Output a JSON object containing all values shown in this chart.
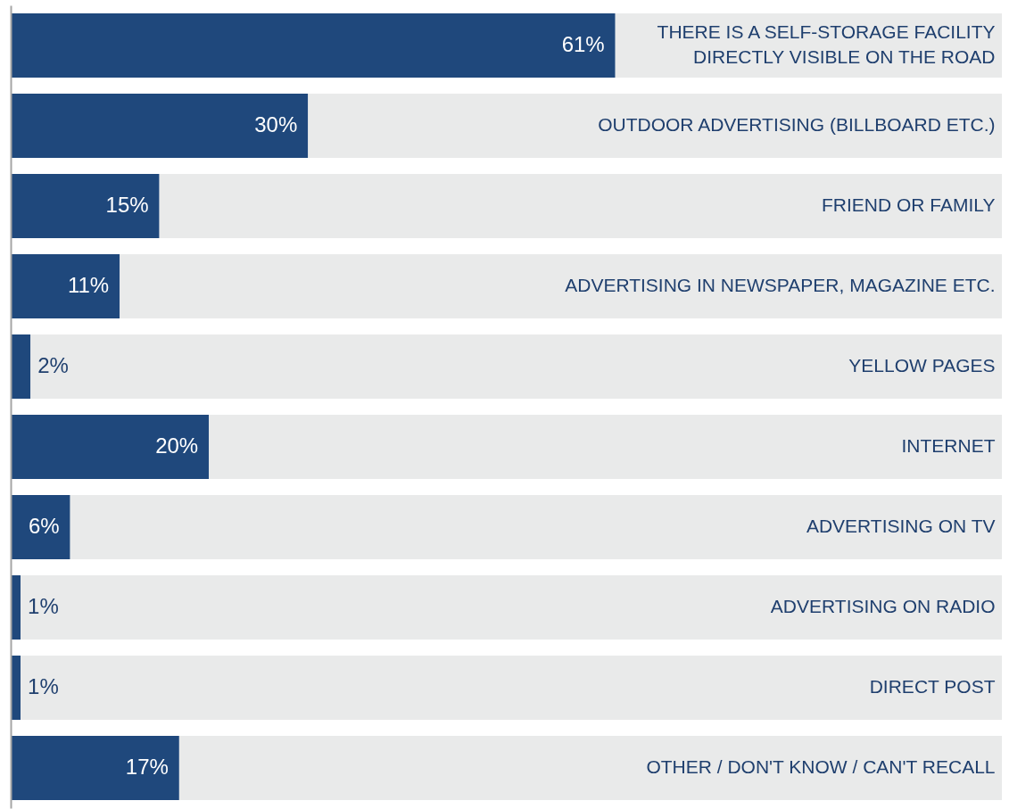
{
  "chart_data": {
    "type": "bar",
    "orientation": "horizontal",
    "stacked": true,
    "categories": [
      "THERE IS A SELF-STORAGE FACILITY DIRECTLY VISIBLE ON THE ROAD",
      "OUTDOOR ADVERTISING (BILLBOARD ETC.)",
      "FRIEND OR FAMILY",
      "ADVERTISING IN NEWSPAPER, MAGAZINE ETC.",
      "YELLOW PAGES",
      "INTERNET",
      "ADVERTISING ON TV",
      "ADVERTISING ON RADIO",
      "DIRECT POST",
      "OTHER / DON'T KNOW / CAN'T RECALL"
    ],
    "series": [
      {
        "color": "#1f487c",
        "values": [
          61,
          30,
          15,
          11,
          2,
          20,
          6,
          1,
          1,
          17
        ],
        "value_labels": [
          "61%",
          "30%",
          "15%",
          "11%",
          "2%",
          "20%",
          "6%",
          "1%",
          "1%",
          "17%"
        ]
      },
      {
        "color": "#e9eaea",
        "values": [
          39,
          70,
          85,
          89,
          98,
          80,
          94,
          99,
          99,
          83
        ]
      }
    ]
  }
}
